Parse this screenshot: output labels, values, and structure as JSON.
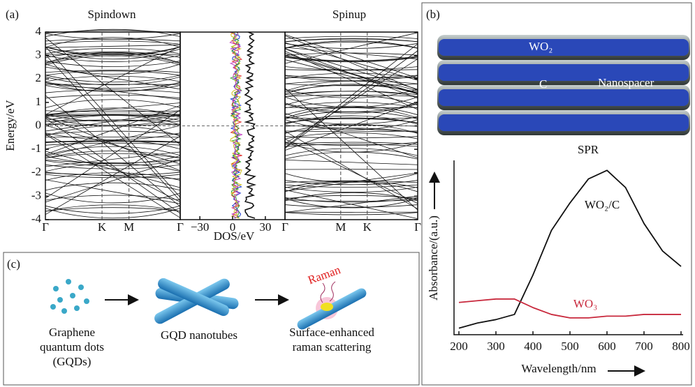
{
  "panels": {
    "a": "(a)",
    "b": "(b)",
    "c": "(c)"
  },
  "chart_data": [
    {
      "type": "band",
      "titles": [
        "Spindown",
        "Spinup"
      ],
      "ylabel": "Energy/eV",
      "xlabel": "DOS/eV",
      "ylim": [
        -4,
        4
      ],
      "yticks": [
        -4,
        -3,
        -2,
        -1,
        0,
        1,
        2,
        3,
        4
      ],
      "left_kpoints": [
        "Γ",
        "K",
        "M",
        "Γ"
      ],
      "right_kpoints": [
        "Γ",
        "M",
        "K",
        "Γ"
      ],
      "dos_xlim": [
        -48,
        48
      ],
      "dos_xticks": [
        {
          "value": -30,
          "label": "−30"
        },
        0,
        30
      ]
    },
    {
      "type": "line",
      "title": "SPR",
      "xlabel": "Wavelength/nm",
      "ylabel": "Absorbance/(a.u.)",
      "xlim": [
        200,
        800
      ],
      "xticks": [
        200,
        300,
        400,
        500,
        600,
        700,
        800
      ],
      "ylim": [
        0,
        1
      ],
      "x": [
        200,
        250,
        300,
        350,
        400,
        450,
        500,
        550,
        600,
        650,
        700,
        750,
        800
      ],
      "series": [
        {
          "name": "WO₂/C",
          "color": "#111111",
          "values": [
            0.03,
            0.06,
            0.08,
            0.11,
            0.34,
            0.6,
            0.76,
            0.9,
            0.95,
            0.85,
            0.64,
            0.48,
            0.39
          ]
        },
        {
          "name": "WO₃",
          "color": "#c8283c",
          "values": [
            0.18,
            0.19,
            0.2,
            0.2,
            0.15,
            0.11,
            0.09,
            0.09,
            0.1,
            0.1,
            0.11,
            0.11,
            0.11
          ]
        }
      ]
    }
  ],
  "diagram": {
    "wo2": "WO₂",
    "c": "C",
    "spacer": "Nanospacer",
    "raman": "Raman",
    "steps": [
      [
        "Graphene",
        "quantum dots",
        "(GQDs)"
      ],
      [
        "GQD nanotubes"
      ],
      [
        "Surface-enhanced",
        "raman scattering"
      ]
    ]
  }
}
